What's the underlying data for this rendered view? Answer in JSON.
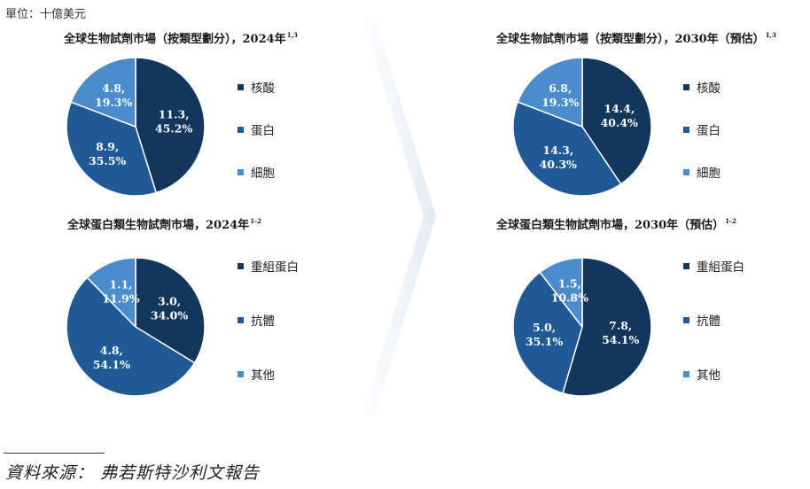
{
  "unit_label": "單位：十億美元",
  "source_note": "資料來源： 弗若斯特沙利文報告",
  "colors": {
    "dark": "#12365c",
    "mid": "#1f5996",
    "light": "#4a8ccc"
  },
  "chart_data": [
    {
      "type": "pie",
      "title": "全球生物試劑市場（按類型劃分），2024年",
      "title_sup": "1,3",
      "categories": [
        "核酸",
        "蛋白",
        "細胞"
      ],
      "values": [
        11.3,
        8.9,
        4.8
      ],
      "labels": [
        [
          "11.3,",
          "45.2%"
        ],
        [
          "8.9,",
          "35.5%"
        ],
        [
          "4.8,",
          "19.3%"
        ]
      ]
    },
    {
      "type": "pie",
      "title": "全球生物試劑市場（按類型劃分），2030年（預估）",
      "title_sup": "1,3",
      "categories": [
        "核酸",
        "蛋白",
        "細胞"
      ],
      "values": [
        14.4,
        14.3,
        6.8
      ],
      "labels": [
        [
          "14.4,",
          "40.4%"
        ],
        [
          "14.3,",
          "40.3%"
        ],
        [
          "6.8,",
          "19.3%"
        ]
      ]
    },
    {
      "type": "pie",
      "title": "全球蛋白類生物試劑市場，2024年",
      "title_sup": "1-2",
      "categories": [
        "重組蛋白",
        "抗體",
        "其他"
      ],
      "values": [
        3.0,
        4.8,
        1.1
      ],
      "labels": [
        [
          "3.0,",
          "34.0%"
        ],
        [
          "4.8,",
          "54.1%"
        ],
        [
          "1.1,",
          "11.9%"
        ]
      ]
    },
    {
      "type": "pie",
      "title": "全球蛋白類生物試劑市場，2030年（預估）",
      "title_sup": "1-2",
      "categories": [
        "重組蛋白",
        "抗體",
        "其他"
      ],
      "values": [
        7.8,
        5.0,
        1.5
      ],
      "labels": [
        [
          "7.8,",
          "54.1%"
        ],
        [
          "5.0,",
          "35.1%"
        ],
        [
          "1.5,",
          "10.8%"
        ]
      ]
    }
  ]
}
